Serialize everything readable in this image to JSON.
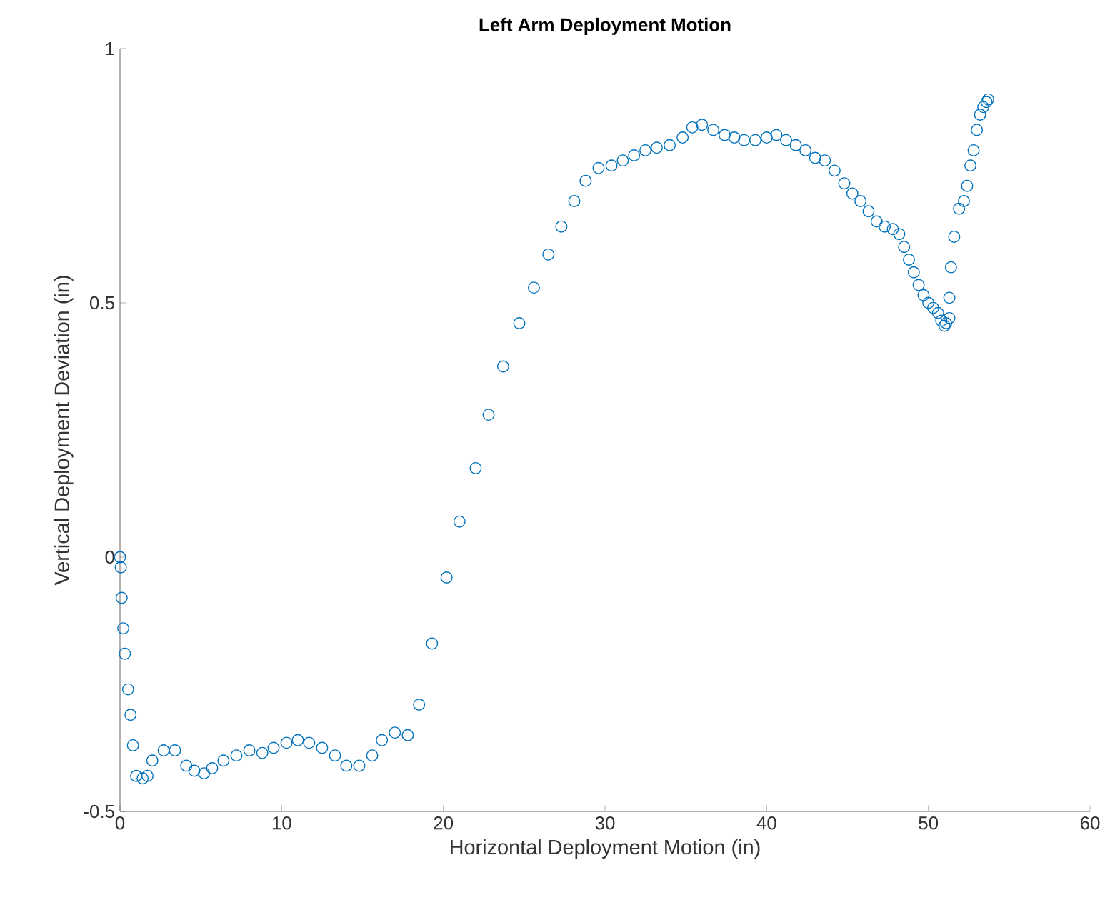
{
  "chart_data": {
    "type": "scatter",
    "title": "Left Arm Deployment Motion",
    "xlabel": "Horizontal Deployment Motion (in)",
    "ylabel": "Vertical Deployment Deviation (in)",
    "xlim": [
      0,
      60
    ],
    "ylim": [
      -0.5,
      1
    ],
    "xticks": [
      0,
      10,
      20,
      30,
      40,
      50,
      60
    ],
    "yticks": [
      -0.5,
      0,
      0.5,
      1
    ],
    "grid": false,
    "marker": "circle",
    "series": [
      {
        "color": "#0072bd",
        "x": [
          0,
          0.05,
          0.1,
          0.2,
          0.3,
          0.5,
          0.65,
          0.8,
          1.0,
          1.4,
          1.7,
          2.0,
          2.7,
          3.4,
          4.1,
          4.6,
          5.2,
          5.7,
          6.4,
          7.2,
          8.0,
          8.8,
          9.5,
          10.3,
          11.0,
          11.7,
          12.5,
          13.3,
          14.0,
          14.8,
          15.6,
          16.2,
          17.0,
          17.8,
          18.5,
          19.3,
          20.2,
          21.0,
          22.0,
          22.8,
          23.7,
          24.7,
          25.6,
          26.5,
          27.3,
          28.1,
          28.8,
          29.6,
          30.4,
          31.1,
          31.8,
          32.5,
          33.2,
          34.0,
          34.8,
          35.4,
          36.0,
          36.7,
          37.4,
          38.0,
          38.6,
          39.3,
          40.0,
          40.6,
          41.2,
          41.8,
          42.4,
          43.0,
          43.6,
          44.2,
          44.8,
          45.3,
          45.8,
          46.3,
          46.8,
          47.3,
          47.8,
          48.2,
          48.5,
          48.8,
          49.1,
          49.4,
          49.7,
          50.0,
          50.3,
          50.6,
          50.8,
          51.0,
          51.1,
          51.3,
          51.3,
          51.4,
          51.6,
          51.9,
          52.2,
          52.4,
          52.6,
          52.8,
          53.0,
          53.2,
          53.4,
          53.6,
          53.7
        ],
        "values": [
          0,
          -0.02,
          -0.08,
          -0.14,
          -0.19,
          -0.26,
          -0.31,
          -0.37,
          -0.43,
          -0.435,
          -0.43,
          -0.4,
          -0.38,
          -0.38,
          -0.41,
          -0.42,
          -0.425,
          -0.415,
          -0.4,
          -0.39,
          -0.38,
          -0.385,
          -0.375,
          -0.365,
          -0.36,
          -0.365,
          -0.375,
          -0.39,
          -0.41,
          -0.41,
          -0.39,
          -0.36,
          -0.345,
          -0.35,
          -0.29,
          -0.17,
          -0.04,
          0.07,
          0.175,
          0.28,
          0.375,
          0.46,
          0.53,
          0.595,
          0.65,
          0.7,
          0.74,
          0.765,
          0.77,
          0.78,
          0.79,
          0.8,
          0.805,
          0.81,
          0.825,
          0.845,
          0.85,
          0.84,
          0.83,
          0.825,
          0.82,
          0.82,
          0.825,
          0.83,
          0.82,
          0.81,
          0.8,
          0.785,
          0.78,
          0.76,
          0.735,
          0.715,
          0.7,
          0.68,
          0.66,
          0.65,
          0.645,
          0.635,
          0.61,
          0.585,
          0.56,
          0.535,
          0.515,
          0.5,
          0.49,
          0.48,
          0.465,
          0.455,
          0.46,
          0.47,
          0.51,
          0.57,
          0.63,
          0.685,
          0.7,
          0.73,
          0.77,
          0.8,
          0.84,
          0.87,
          0.885,
          0.895,
          0.9
        ]
      }
    ]
  }
}
